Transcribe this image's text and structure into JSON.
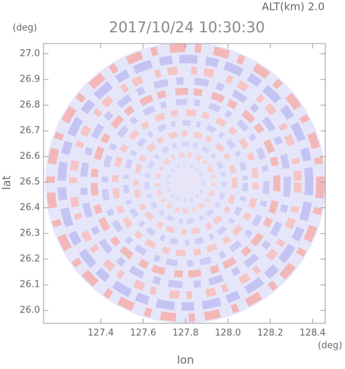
{
  "chart_data": {
    "type": "radar-ppi",
    "title": "2017/10/24 10:30:30",
    "altitude_label": "ALT(km) 2.0",
    "y_unit": "(deg)",
    "x_unit": "(deg)",
    "xlabel": "lon",
    "ylabel": "lat",
    "xlim": [
      127.13,
      128.46
    ],
    "xticks": [
      127.4,
      127.6,
      127.8,
      {
        "value": 128,
        "label": "128.0"
      },
      128.2,
      128.4
    ],
    "ylim": [
      25.95,
      27.04
    ],
    "yticks": [
      {
        "value": 26,
        "label": "26.0"
      },
      26.1,
      26.2,
      26.3,
      26.4,
      26.5,
      26.6,
      26.7,
      26.8,
      26.9,
      {
        "value": 27,
        "label": "27.0"
      }
    ],
    "grid": false
  }
}
